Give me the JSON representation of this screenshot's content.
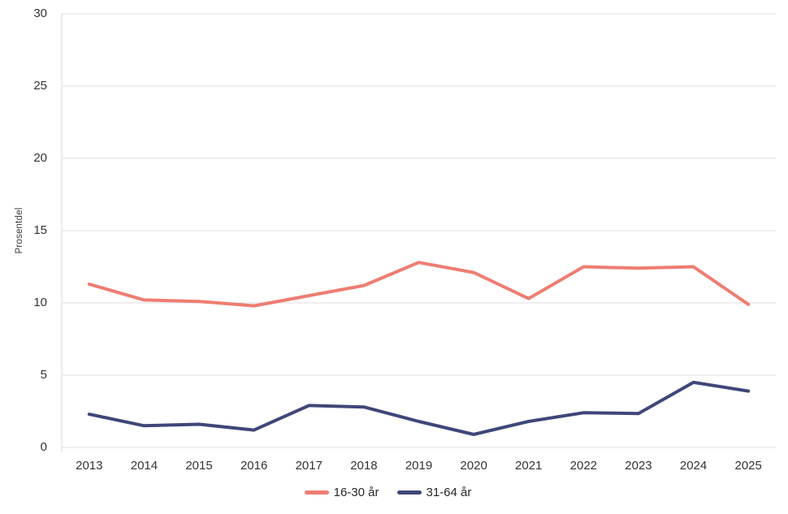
{
  "chart_data": {
    "type": "line",
    "title": "",
    "xlabel": "",
    "ylabel": "Prosentdel",
    "x": [
      "2013",
      "2014",
      "2015",
      "2016",
      "2017",
      "2018",
      "2019",
      "2020",
      "2021",
      "2022",
      "2023",
      "2024",
      "2025"
    ],
    "ylim": [
      0,
      30
    ],
    "yticks": [
      0,
      5,
      10,
      15,
      20,
      25,
      30
    ],
    "grid": "horizontal",
    "legend_position": "bottom",
    "series": [
      {
        "name": "16-30 år",
        "color": "#EE7D72",
        "values": [
          11.3,
          10.2,
          10.1,
          9.8,
          10.5,
          11.2,
          12.8,
          12.1,
          10.3,
          12.5,
          12.4,
          12.5,
          9.9
        ]
      },
      {
        "name": "31-64 år",
        "color": "#3F4779",
        "values": [
          2.3,
          1.5,
          1.6,
          1.2,
          2.9,
          2.8,
          1.8,
          0.9,
          1.8,
          2.4,
          2.35,
          4.5,
          3.9
        ]
      }
    ]
  },
  "colors": {
    "grid": "#e4e4e4",
    "axis_text": "#333333",
    "background": "#ffffff"
  }
}
